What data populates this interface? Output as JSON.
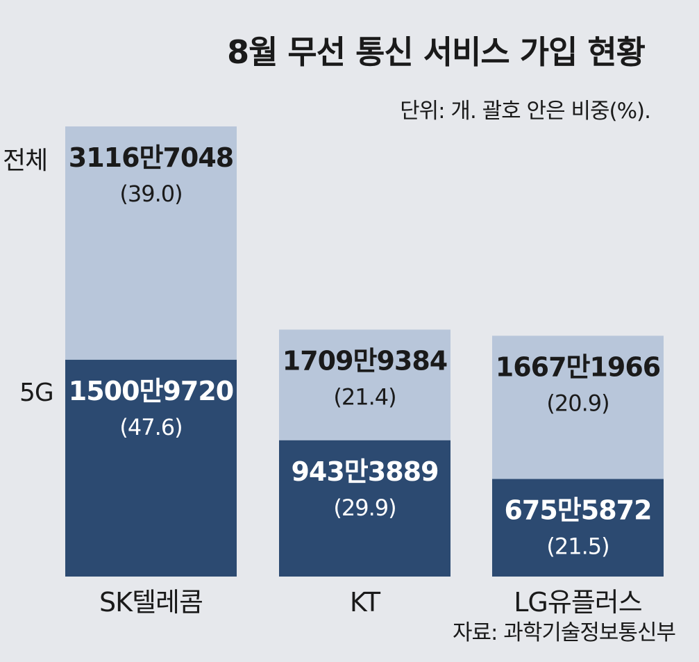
{
  "title": "8월 무선 통신 서비스 가입 현황",
  "subtitle": "단위: 개. 괄호 안은 비중(%).",
  "source": "자료: 과학기술정보통신부",
  "side_labels": {
    "total": "전체",
    "fiveg": "5G"
  },
  "colors": {
    "background": "#e6e8ec",
    "total_bar": "#b8c6da",
    "fiveg_bar": "#2c4a71",
    "total_text": "#1a1a1a",
    "fiveg_text": "#ffffff"
  },
  "chart_data": {
    "type": "bar",
    "stacking": "overlaid",
    "title": "8월 무선 통신 서비스 가입 현황",
    "subtitle": "단위: 개. 괄호 안은 비중(%).",
    "categories": [
      "SK텔레콤",
      "KT",
      "LG유플러스"
    ],
    "series": [
      {
        "name": "전체",
        "values": [
          31167048,
          17099384,
          16671966
        ],
        "value_labels": [
          "3116만7048",
          "1709만9384",
          "1667만1966"
        ],
        "share_labels": [
          "(39.0)",
          "(21.4)",
          "(20.9)"
        ],
        "shares": [
          39.0,
          21.4,
          20.9
        ]
      },
      {
        "name": "5G",
        "values": [
          15009720,
          9433889,
          6755872
        ],
        "value_labels": [
          "1500만9720",
          "943만3889",
          "675만5872"
        ],
        "share_labels": [
          "(47.6)",
          "(29.9)",
          "(21.5)"
        ],
        "shares": [
          47.6,
          29.9,
          21.5
        ]
      }
    ],
    "grid": false,
    "legend": "left"
  }
}
